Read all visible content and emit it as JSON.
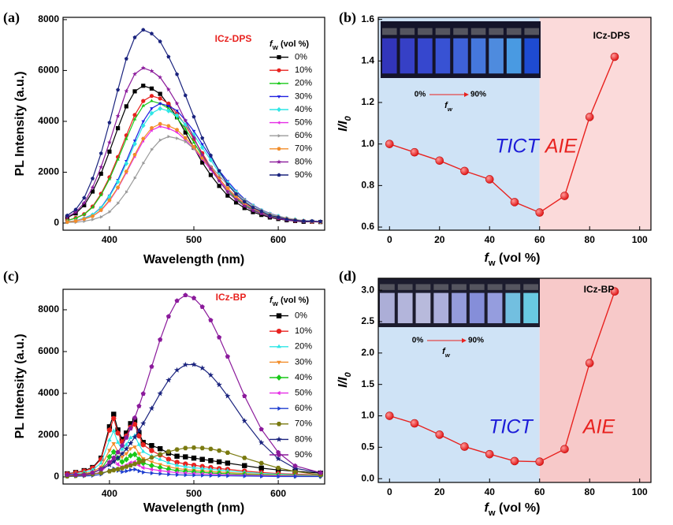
{
  "chart_data": [
    {
      "type": "line",
      "panel_label": "(a)",
      "sample_label": "ICz-DPS",
      "sample_label_color": "#e8221f",
      "x_label": "Wavelength (nm)",
      "y_label": "PL Intensity (a.u.)",
      "legend_title": [
        "f",
        "W",
        " (vol %)"
      ],
      "xlim": [
        345,
        655
      ],
      "xticks": [
        400,
        500,
        600
      ],
      "ylim": [
        -280,
        8090
      ],
      "yticks": [
        0,
        2000,
        4000,
        6000,
        8000
      ],
      "x": [
        350,
        360,
        370,
        380,
        390,
        400,
        410,
        420,
        430,
        440,
        450,
        460,
        470,
        480,
        490,
        500,
        510,
        520,
        530,
        540,
        550,
        560,
        570,
        580,
        590,
        600,
        610,
        620,
        630,
        640,
        650
      ],
      "series": [
        {
          "name": "0%",
          "color": "#000000",
          "marker": "square",
          "values": [
            220,
            380,
            700,
            1240,
            1940,
            2810,
            3730,
            4590,
            5180,
            5400,
            5290,
            5080,
            4640,
            4160,
            3560,
            2970,
            2380,
            1890,
            1460,
            1080,
            810,
            590,
            430,
            320,
            220,
            160,
            110,
            80,
            50,
            50,
            40
          ]
        },
        {
          "name": "10%",
          "color": "#e8221f",
          "marker": "circle",
          "values": [
            100,
            200,
            350,
            650,
            1150,
            1800,
            2600,
            3450,
            4250,
            4800,
            5000,
            4900,
            4700,
            4300,
            3850,
            3300,
            2750,
            2200,
            1750,
            1350,
            1000,
            750,
            550,
            400,
            300,
            200,
            150,
            100,
            80,
            50,
            50
          ]
        },
        {
          "name": "20%",
          "color": "#19c919",
          "marker": "up",
          "values": [
            100,
            190,
            340,
            620,
            1100,
            1730,
            2500,
            3310,
            4080,
            4610,
            4800,
            4700,
            4510,
            4130,
            3700,
            3170,
            2640,
            2110,
            1680,
            1300,
            960,
            720,
            530,
            380,
            290,
            190,
            140,
            100,
            70,
            50,
            50
          ]
        },
        {
          "name": "30%",
          "color": "#1f1fe0",
          "marker": "down",
          "values": [
            50,
            90,
            190,
            330,
            610,
            1080,
            1690,
            2440,
            3240,
            4000,
            4510,
            4700,
            4610,
            4420,
            4040,
            3620,
            3100,
            2590,
            2070,
            1650,
            1270,
            940,
            710,
            520,
            380,
            280,
            190,
            140,
            90,
            70,
            50
          ]
        },
        {
          "name": "40%",
          "color": "#2ee6e6",
          "marker": "diamond",
          "values": [
            50,
            90,
            180,
            320,
            590,
            1040,
            1620,
            2340,
            3110,
            3830,
            4320,
            4500,
            4410,
            4230,
            3870,
            3470,
            2970,
            2480,
            1980,
            1580,
            1220,
            900,
            680,
            500,
            360,
            270,
            180,
            140,
            90,
            70,
            50
          ]
        },
        {
          "name": "50%",
          "color": "#e62ee6",
          "marker": "left",
          "values": [
            40,
            80,
            150,
            270,
            490,
            870,
            1370,
            1980,
            2620,
            3230,
            3650,
            3800,
            3720,
            3570,
            3270,
            2930,
            2510,
            2090,
            1670,
            1330,
            1030,
            760,
            570,
            420,
            300,
            230,
            150,
            110,
            80,
            60,
            40
          ]
        },
        {
          "name": "60%",
          "color": "#9a9a9a",
          "marker": "right",
          "values": [
            30,
            30,
            70,
            140,
            240,
            440,
            780,
            1220,
            1770,
            2350,
            2890,
            3260,
            3400,
            3330,
            3200,
            2920,
            2620,
            2240,
            1870,
            1500,
            1190,
            920,
            680,
            510,
            370,
            270,
            200,
            140,
            100,
            70,
            50
          ]
        },
        {
          "name": "70%",
          "color": "#f28c28",
          "marker": "hexagon",
          "values": [
            40,
            80,
            160,
            270,
            510,
            900,
            1400,
            2030,
            2690,
            3320,
            3740,
            3900,
            3820,
            3670,
            3350,
            3000,
            2570,
            2150,
            1720,
            1370,
            1050,
            780,
            590,
            430,
            310,
            230,
            160,
            120,
            80,
            60,
            40
          ]
        },
        {
          "name": "80%",
          "color": "#8b1a9b",
          "marker": "star",
          "values": [
            240,
            430,
            790,
            1400,
            2200,
            3170,
            4210,
            5190,
            5860,
            6100,
            5980,
            5730,
            5250,
            4700,
            4030,
            3360,
            2680,
            2140,
            1650,
            1220,
            920,
            670,
            490,
            370,
            240,
            180,
            120,
            90,
            60,
            60,
            50
          ]
        },
        {
          "name": "90%",
          "color": "#1a237e",
          "marker": "pentagon",
          "values": [
            300,
            530,
            990,
            1750,
            2740,
            3950,
            5240,
            6460,
            7300,
            7600,
            7450,
            7140,
            6540,
            5850,
            5020,
            4180,
            3340,
            2660,
            2050,
            1520,
            1140,
            840,
            610,
            460,
            300,
            230,
            150,
            110,
            80,
            80,
            60
          ]
        }
      ]
    },
    {
      "type": "line",
      "panel_label": "(b)",
      "sample_label": "ICz-DPS",
      "sample_label_color": "#000000",
      "x_label": [
        "f",
        "w",
        " (vol %)"
      ],
      "y_label": [
        "I/I",
        "0"
      ],
      "xlim": [
        -4.5,
        104.5
      ],
      "xticks": [
        0,
        20,
        40,
        60,
        80,
        100
      ],
      "ylim": [
        0.585,
        1.61
      ],
      "yticks": [
        0.6,
        0.8,
        {
          "value": 1,
          "label": "1.0"
        },
        1.2,
        1.4,
        1.6
      ],
      "x": [
        0,
        10,
        20,
        30,
        40,
        50,
        60,
        70,
        80,
        90
      ],
      "values": [
        1.0,
        0.96,
        0.92,
        0.87,
        0.83,
        0.72,
        0.67,
        0.75,
        1.13,
        1.42
      ],
      "color": "#e8221f",
      "marker": "ball",
      "regions": [
        {
          "xlim": [
            -4.5,
            60
          ],
          "color": "#cfe3f6"
        },
        {
          "xlim": [
            60,
            104.5
          ],
          "color": "#fbdada"
        }
      ],
      "annotations": [
        {
          "text": "TICT",
          "color": "#1c1cd8"
        },
        {
          "text": "AIE",
          "color": "#e8221f"
        }
      ],
      "inset": {
        "from": "0%",
        "to": "90%",
        "label": [
          "f",
          "w"
        ]
      }
    },
    {
      "type": "line",
      "panel_label": "(c)",
      "sample_label": "ICz-BP",
      "sample_label_color": "#e8221f",
      "x_label": "Wavelength (nm)",
      "y_label": "PL Intensity (a.u.)",
      "legend_title": [
        "f",
        "W",
        " (vol %)"
      ],
      "xlim": [
        345,
        655
      ],
      "xticks": [
        400,
        500,
        600
      ],
      "ylim": [
        -340,
        8980
      ],
      "yticks": [
        0,
        2000,
        4000,
        6000,
        8000
      ],
      "x": [
        350,
        360,
        370,
        380,
        390,
        400,
        405,
        410,
        415,
        420,
        425,
        430,
        435,
        440,
        450,
        460,
        470,
        480,
        490,
        500,
        510,
        520,
        530,
        540,
        560,
        580,
        600,
        620,
        650
      ],
      "series": [
        {
          "name": "0%",
          "color": "#000000",
          "marker": "square",
          "values": [
            150,
            210,
            300,
            450,
            900,
            2400,
            3000,
            2250,
            1800,
            2100,
            2550,
            2700,
            2100,
            1650,
            1500,
            1350,
            1140,
            990,
            960,
            900,
            840,
            780,
            720,
            660,
            540,
            420,
            330,
            270,
            180
          ]
        },
        {
          "name": "10%",
          "color": "#e8221f",
          "marker": "circle",
          "values": [
            140,
            200,
            280,
            420,
            840,
            2240,
            2800,
            2100,
            1680,
            1960,
            2380,
            2520,
            1960,
            1540,
            1260,
            1050,
            850,
            700,
            620,
            560,
            500,
            450,
            400,
            360,
            280,
            210,
            160,
            130,
            100
          ]
        },
        {
          "name": "20%",
          "color": "#2ee6e6",
          "marker": "up",
          "values": [
            110,
            150,
            220,
            330,
            660,
            1760,
            2200,
            1650,
            1320,
            1540,
            1870,
            1980,
            1540,
            1210,
            990,
            830,
            670,
            550,
            490,
            440,
            400,
            360,
            320,
            290,
            220,
            170,
            130,
            100,
            80
          ]
        },
        {
          "name": "30%",
          "color": "#f28c28",
          "marker": "down",
          "values": [
            80,
            110,
            160,
            240,
            480,
            1280,
            1600,
            1200,
            960,
            1120,
            1360,
            1440,
            1120,
            880,
            720,
            600,
            490,
            400,
            350,
            320,
            290,
            260,
            230,
            210,
            160,
            120,
            90,
            70,
            60
          ]
        },
        {
          "name": "40%",
          "color": "#19c919",
          "marker": "diamond",
          "values": [
            60,
            80,
            120,
            180,
            360,
            960,
            1200,
            900,
            720,
            840,
            1020,
            1080,
            840,
            660,
            540,
            450,
            370,
            300,
            270,
            240,
            220,
            190,
            170,
            150,
            120,
            90,
            70,
            60,
            40
          ]
        },
        {
          "name": "50%",
          "color": "#e62ee6",
          "marker": "left",
          "values": [
            40,
            60,
            80,
            120,
            240,
            640,
            800,
            600,
            480,
            560,
            680,
            720,
            560,
            440,
            360,
            300,
            250,
            200,
            180,
            160,
            140,
            130,
            110,
            100,
            80,
            60,
            50,
            40,
            30
          ]
        },
        {
          "name": "60%",
          "color": "#1f3fd0",
          "marker": "right",
          "values": [
            20,
            30,
            40,
            60,
            120,
            320,
            400,
            300,
            240,
            280,
            340,
            360,
            280,
            220,
            180,
            150,
            120,
            100,
            90,
            80,
            70,
            60,
            60,
            50,
            40,
            30,
            20,
            20,
            20
          ]
        },
        {
          "name": "70%",
          "color": "#7a7a10",
          "marker": "hexagon",
          "values": [
            30,
            55,
            85,
            130,
            190,
            270,
            320,
            370,
            420,
            490,
            550,
            620,
            700,
            770,
            930,
            1080,
            1210,
            1310,
            1380,
            1400,
            1380,
            1340,
            1260,
            1160,
            910,
            660,
            430,
            260,
            100
          ]
        },
        {
          "name": "80%",
          "color": "#1a237e",
          "marker": "star",
          "values": [
            100,
            100,
            110,
            200,
            360,
            580,
            730,
            910,
            1110,
            1340,
            1610,
            1900,
            2220,
            2560,
            3280,
            3990,
            4630,
            5110,
            5370,
            5380,
            5210,
            4870,
            4410,
            3870,
            2680,
            1640,
            870,
            410,
            200
          ]
        },
        {
          "name": "90%",
          "color": "#8b1a9b",
          "marker": "pentagon",
          "values": [
            100,
            100,
            100,
            200,
            380,
            700,
            910,
            1180,
            1500,
            1880,
            2320,
            2830,
            3390,
            3980,
            5280,
            6570,
            7680,
            8430,
            8700,
            8560,
            8140,
            7500,
            6680,
            5760,
            3870,
            2280,
            1170,
            530,
            200
          ]
        }
      ]
    },
    {
      "type": "line",
      "panel_label": "(d)",
      "sample_label": "ICz-BP",
      "sample_label_color": "#000000",
      "x_label": [
        "f",
        "w",
        " (vol %)"
      ],
      "y_label": [
        "I/I",
        "0"
      ],
      "xlim": [
        -4.5,
        104.5
      ],
      "xticks": [
        0,
        20,
        40,
        60,
        80,
        100
      ],
      "ylim": [
        -0.06,
        3.19
      ],
      "yticks": [
        {
          "value": 0,
          "label": "0.0"
        },
        0.5,
        {
          "value": 1,
          "label": "1.0"
        },
        1.5,
        {
          "value": 2,
          "label": "2.0"
        },
        2.5,
        {
          "value": 3,
          "label": "3.0"
        }
      ],
      "x": [
        0,
        10,
        20,
        30,
        40,
        50,
        60,
        70,
        80,
        90
      ],
      "values": [
        1.0,
        0.88,
        0.7,
        0.51,
        0.39,
        0.28,
        0.27,
        0.47,
        1.84,
        2.98
      ],
      "color": "#e8221f",
      "marker": "ball",
      "regions": [
        {
          "xlim": [
            -4.5,
            60
          ],
          "color": "#cfe3f6"
        },
        {
          "xlim": [
            60,
            104.5
          ],
          "color": "#f7c9c9"
        }
      ],
      "annotations": [
        {
          "text": "TICT",
          "color": "#1c1cd8"
        },
        {
          "text": "AIE",
          "color": "#e8221f"
        }
      ],
      "inset": {
        "from": "0%",
        "to": "90%",
        "label": [
          "f",
          "w"
        ]
      }
    }
  ]
}
